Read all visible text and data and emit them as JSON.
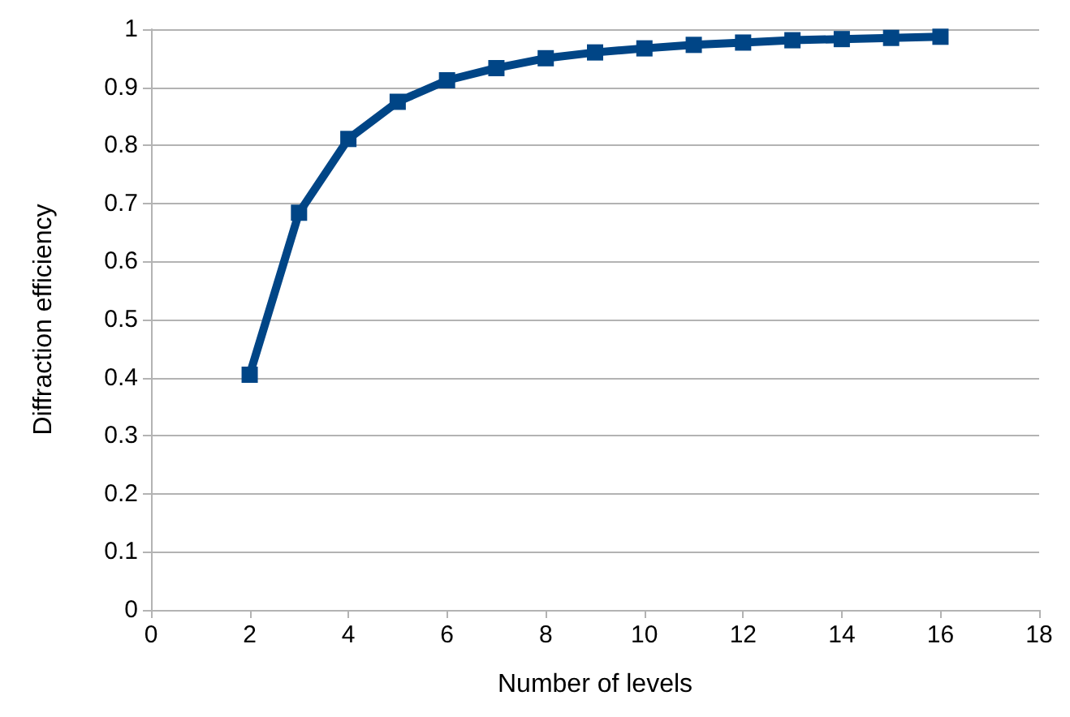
{
  "chart_data": {
    "type": "line",
    "xlabel": "Number of levels",
    "ylabel": "Diffraction efficiency",
    "x": [
      2,
      3,
      4,
      5,
      6,
      7,
      8,
      9,
      10,
      11,
      12,
      13,
      14,
      15,
      16
    ],
    "series": [
      {
        "color": "#004586",
        "values": [
          0.405,
          0.684,
          0.811,
          0.875,
          0.912,
          0.933,
          0.95,
          0.96,
          0.967,
          0.973,
          0.977,
          0.981,
          0.983,
          0.985,
          0.987
        ]
      }
    ],
    "xlim": [
      0,
      18
    ],
    "xticks": [
      0,
      2,
      4,
      6,
      8,
      10,
      12,
      14,
      16,
      18
    ],
    "ylim": [
      0,
      1
    ],
    "yticks": [
      0,
      0.1,
      0.2,
      0.3,
      0.4,
      0.5,
      0.6,
      0.7,
      0.8,
      0.9,
      1
    ],
    "grid": "y",
    "marker": "square",
    "line_style": "solid"
  }
}
